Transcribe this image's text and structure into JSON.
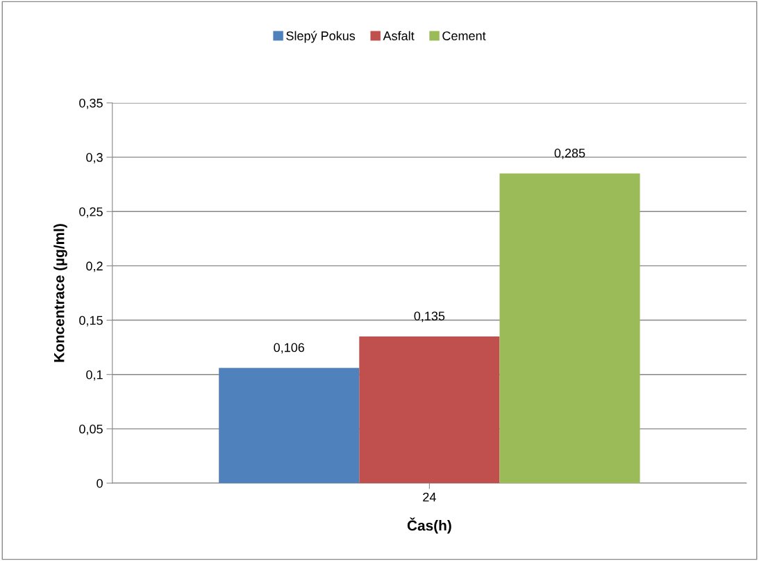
{
  "chart_data": {
    "type": "bar",
    "xlabel": "Čas(h)",
    "ylabel": "Koncentrace (µg/ml)",
    "categories": [
      "24"
    ],
    "series": [
      {
        "name": "Slepý Pokus",
        "color": "#4f81bd",
        "values": [
          0.106
        ],
        "value_labels": [
          "0,106"
        ]
      },
      {
        "name": "Asfalt",
        "color": "#c0504d",
        "values": [
          0.135
        ],
        "value_labels": [
          "0,135"
        ]
      },
      {
        "name": "Cement",
        "color": "#9bbb59",
        "values": [
          0.285
        ],
        "value_labels": [
          "0,285"
        ]
      }
    ],
    "ylim": [
      0,
      0.35
    ],
    "yticks": [
      0,
      {
        "value": 0.05,
        "label": "0,05"
      },
      {
        "value": 0.1,
        "label": "0,1"
      },
      {
        "value": 0.15,
        "label": "0,15"
      },
      {
        "value": 0.2,
        "label": "0,2"
      },
      {
        "value": 0.25,
        "label": "0,25"
      },
      {
        "value": 0.3,
        "label": "0,3"
      },
      {
        "value": 0.35,
        "label": "0,35"
      }
    ],
    "grid": "y",
    "legend": "top"
  }
}
